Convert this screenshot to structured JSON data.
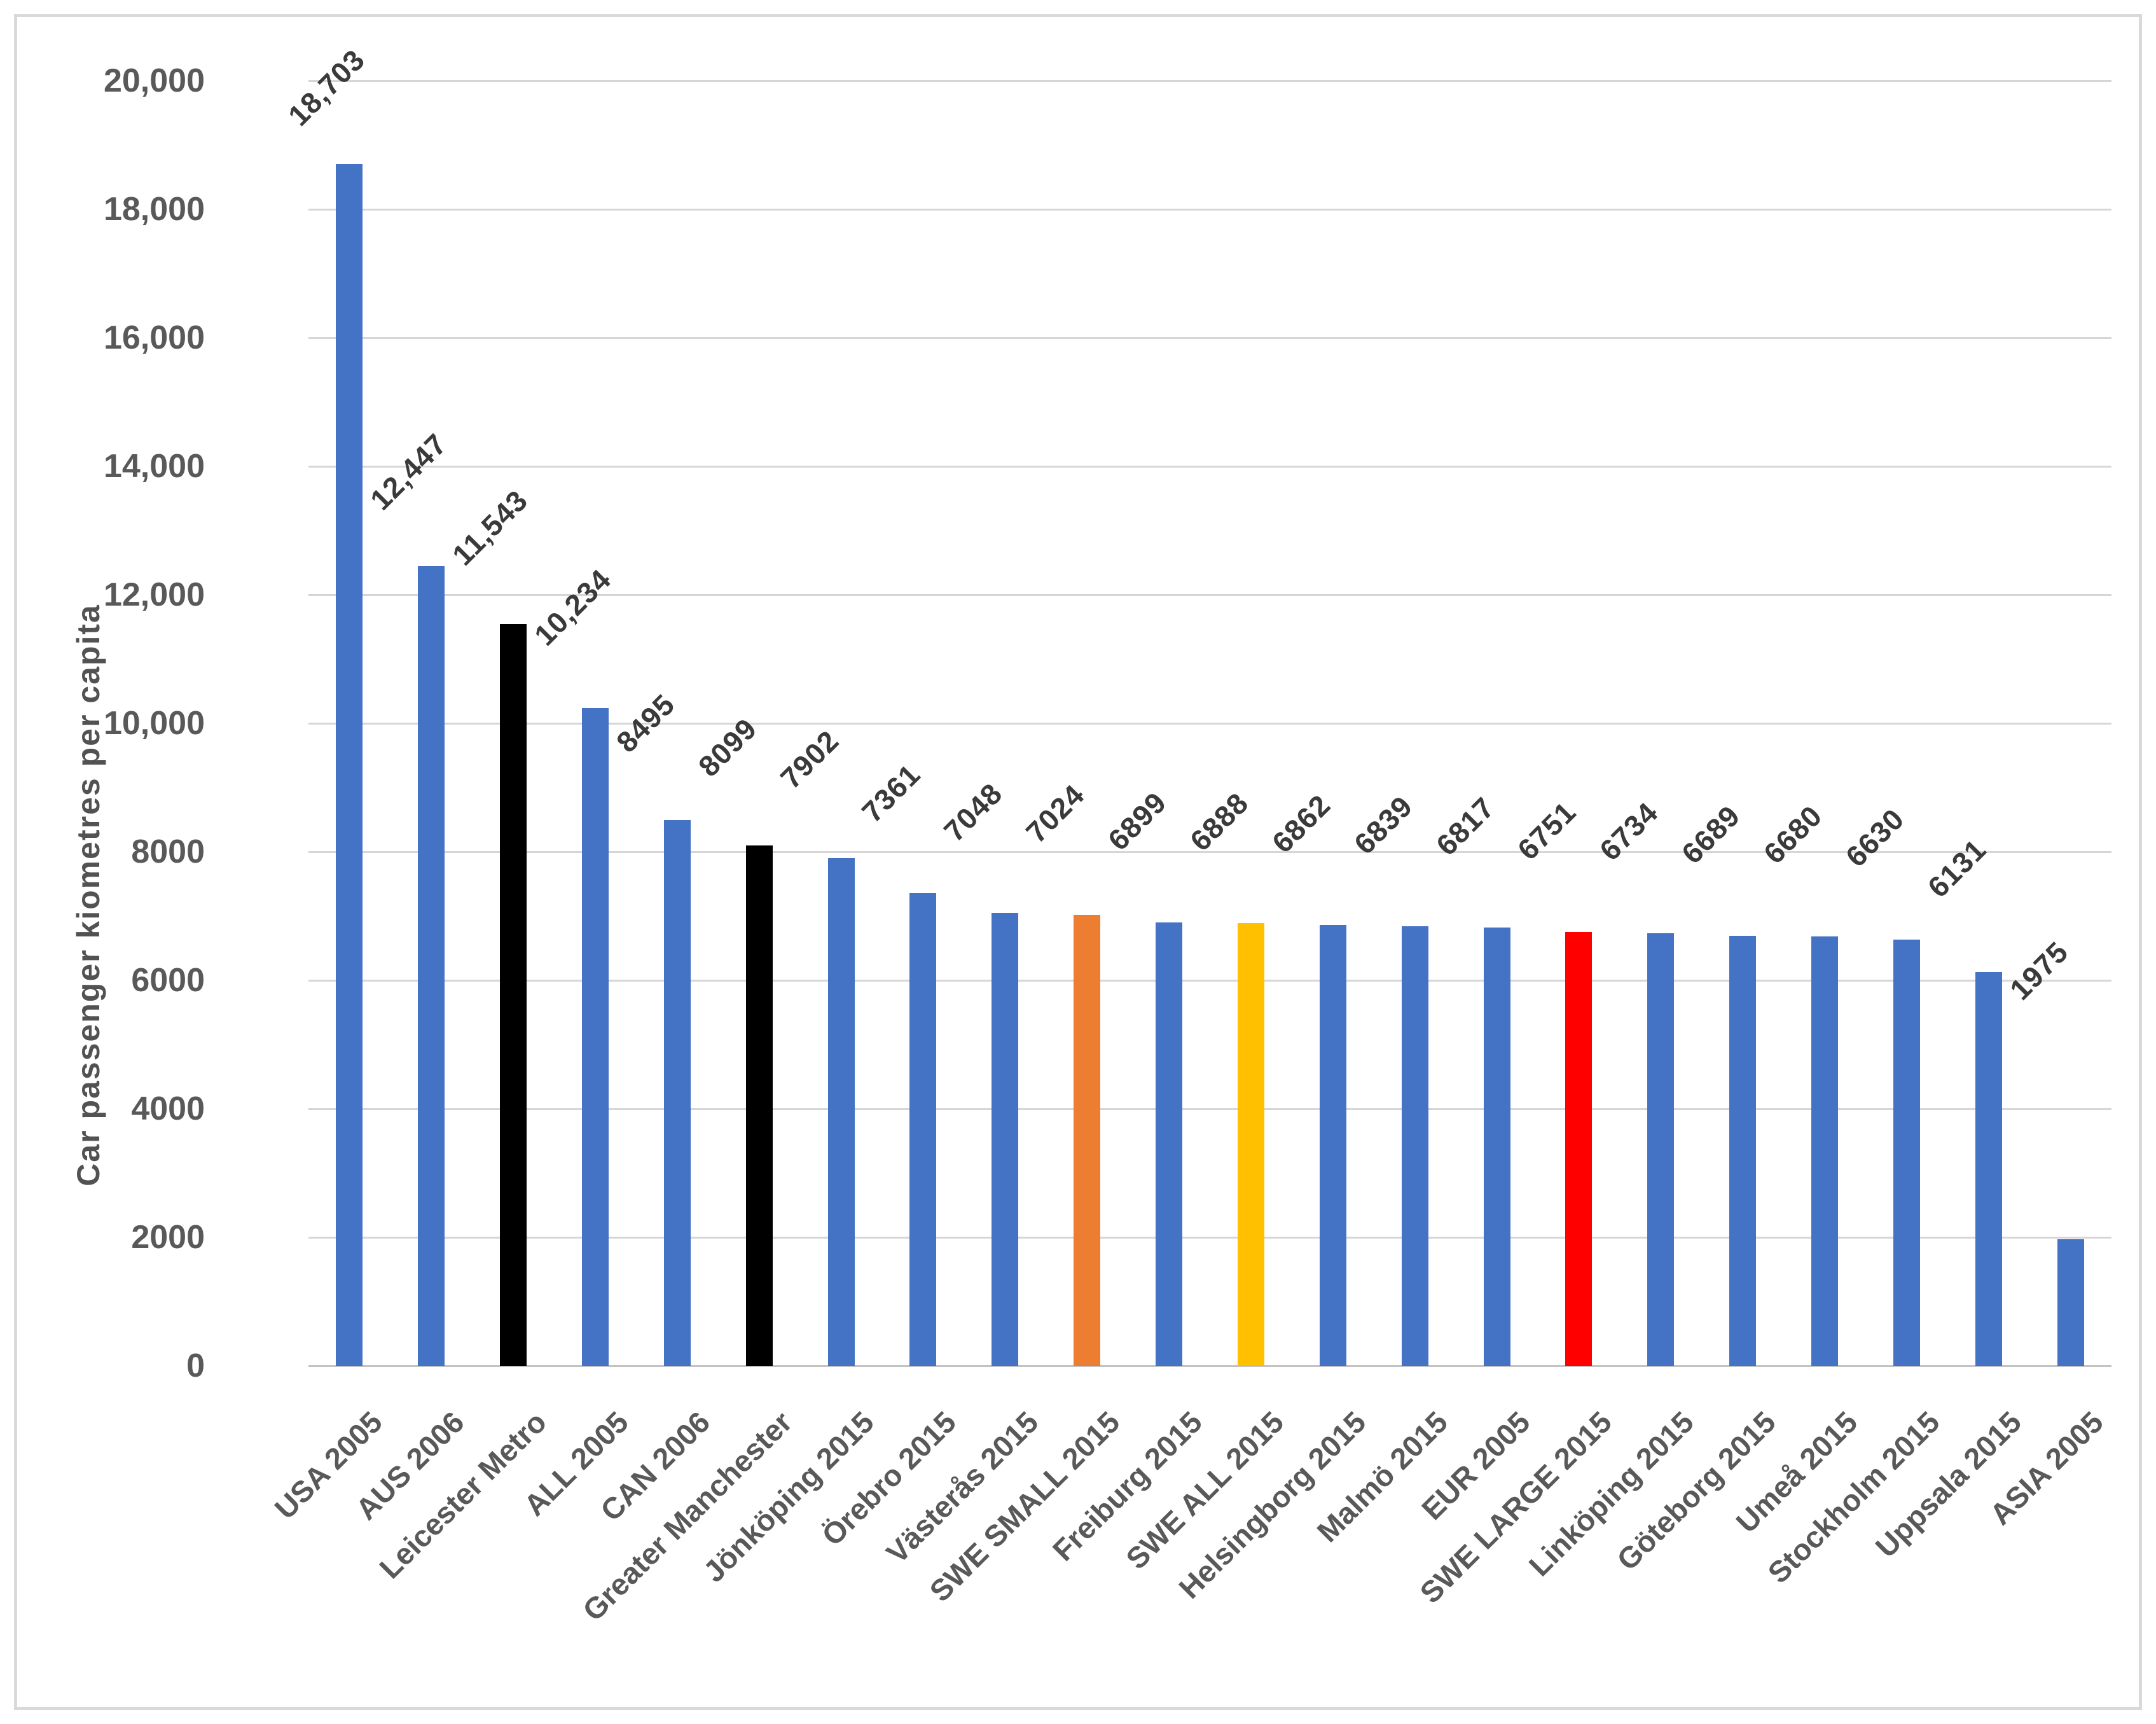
{
  "chart_data": {
    "type": "bar",
    "title": "",
    "xlabel": "",
    "ylabel": "Car passenger kiometres per capita",
    "ylim": [
      0,
      20000
    ],
    "grid": true,
    "legend": "none",
    "ytick_values": [
      0,
      2000,
      4000,
      6000,
      8000,
      10000,
      12000,
      14000,
      16000,
      18000,
      20000
    ],
    "ytick_labels": [
      "0",
      "2000",
      "4000",
      "6000",
      "8000",
      "10,000",
      "12,000",
      "14,000",
      "16,000",
      "18,000",
      "20,000"
    ],
    "categories": [
      "USA 2005",
      "AUS 2006",
      "Leicester Metro",
      "ALL 2005",
      "CAN 2006",
      "Greater Manchester",
      "Jönköping 2015",
      "Örebro 2015",
      "Västerås 2015",
      "SWE SMALL 2015",
      "Freiburg 2015",
      "SWE ALL 2015",
      "Helsingborg 2015",
      "Malmö 2015",
      "EUR 2005",
      "SWE LARGE 2015",
      "Linköping 2015",
      "Göteborg 2015",
      "Umeå 2015",
      "Stockholm 2015",
      "Uppsala 2015",
      "ASIA 2005"
    ],
    "values": [
      18703,
      12447,
      11543,
      10234,
      8495,
      8099,
      7902,
      7361,
      7048,
      7024,
      6899,
      6888,
      6862,
      6839,
      6817,
      6751,
      6734,
      6689,
      6680,
      6630,
      6131,
      1975
    ],
    "value_labels": [
      "18,703",
      "12,447",
      "11,543",
      "10,234",
      "8495",
      "8099",
      "7902",
      "7361",
      "7048",
      "7024",
      "6899",
      "6888",
      "6862",
      "6839",
      "6817",
      "6751",
      "6734",
      "6689",
      "6680",
      "6630",
      "6131",
      "1975"
    ],
    "bar_colors": [
      "#4472C4",
      "#4472C4",
      "#000000",
      "#4472C4",
      "#4472C4",
      "#000000",
      "#4472C4",
      "#4472C4",
      "#4472C4",
      "#ED7D31",
      "#4472C4",
      "#FFC000",
      "#4472C4",
      "#4472C4",
      "#4472C4",
      "#FF0000",
      "#4472C4",
      "#4472C4",
      "#4472C4",
      "#4472C4",
      "#4472C4",
      "#4472C4"
    ],
    "colors": {
      "default_bar": "#4472C4",
      "highlight_black": "#000000",
      "highlight_orange": "#ED7D31",
      "highlight_yellow": "#FFC000",
      "highlight_red": "#FF0000",
      "gridline": "#D6D6D6",
      "axis_line": "#C2C2C2",
      "tick_text": "#595959",
      "data_label_text": "#3A3A3A",
      "frame_border": "#D9D9D9"
    }
  }
}
